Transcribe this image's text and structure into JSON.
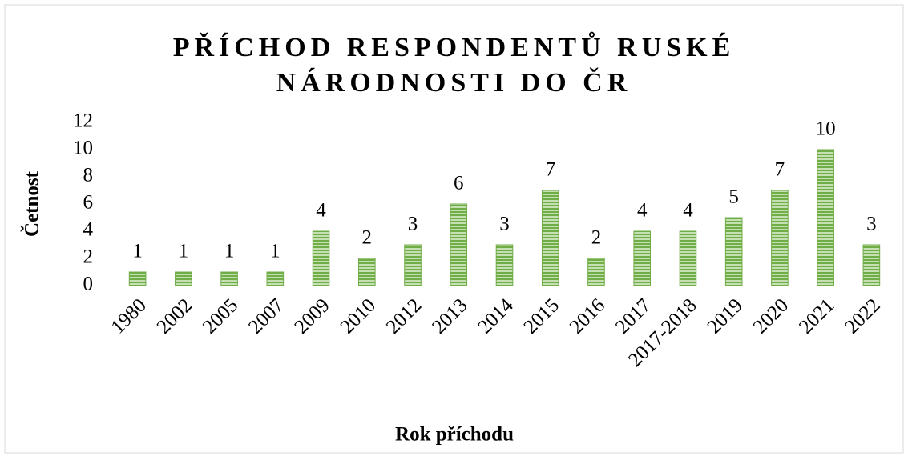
{
  "chart_data": {
    "type": "bar",
    "title": "PŘÍCHOD RESPONDENTŮ RUSKÉ NÁRODNOSTI DO ČR",
    "x_label": "Rok příchodu",
    "y_label": "Četnost",
    "categories": [
      "1980",
      "2002",
      "2005",
      "2007",
      "2009",
      "2010",
      "2012",
      "2013",
      "2014",
      "2015",
      "2016",
      "2017",
      "2017-2018",
      "2019",
      "2020",
      "2021",
      "2022"
    ],
    "values": [
      1,
      1,
      1,
      1,
      4,
      2,
      3,
      6,
      3,
      7,
      2,
      4,
      4,
      5,
      7,
      10,
      3
    ],
    "color": "#70ad47",
    "ylim": [
      0,
      12
    ],
    "yticks": [
      0,
      2,
      4,
      6,
      8,
      10,
      12
    ],
    "grid": false
  }
}
